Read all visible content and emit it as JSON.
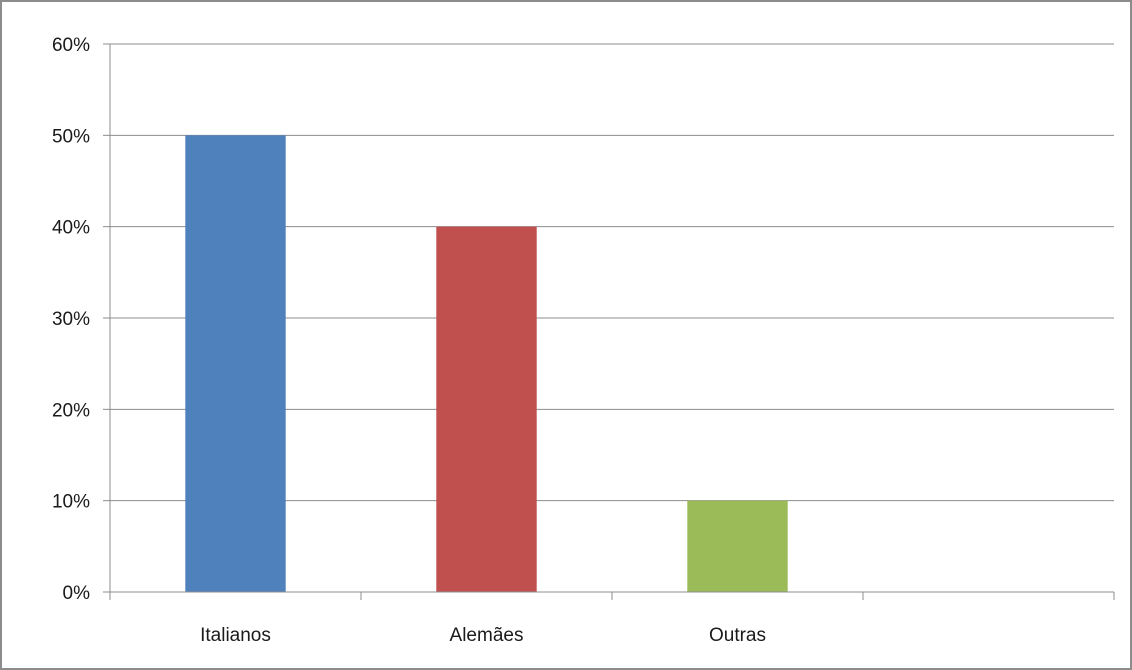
{
  "chart_data": {
    "type": "bar",
    "categories": [
      "Italianos",
      "Alemães",
      "Outras"
    ],
    "values": [
      50,
      40,
      10
    ],
    "bar_colors": [
      "#4f81bd",
      "#c0504d",
      "#9bbb59"
    ],
    "slots": 4,
    "y_ticks": [
      "0%",
      "10%",
      "20%",
      "30%",
      "40%",
      "50%",
      "60%"
    ],
    "ylim": [
      0,
      60
    ],
    "y_unit": "%",
    "grid": true,
    "legend": "none",
    "title": "",
    "xlabel": "",
    "ylabel": ""
  }
}
